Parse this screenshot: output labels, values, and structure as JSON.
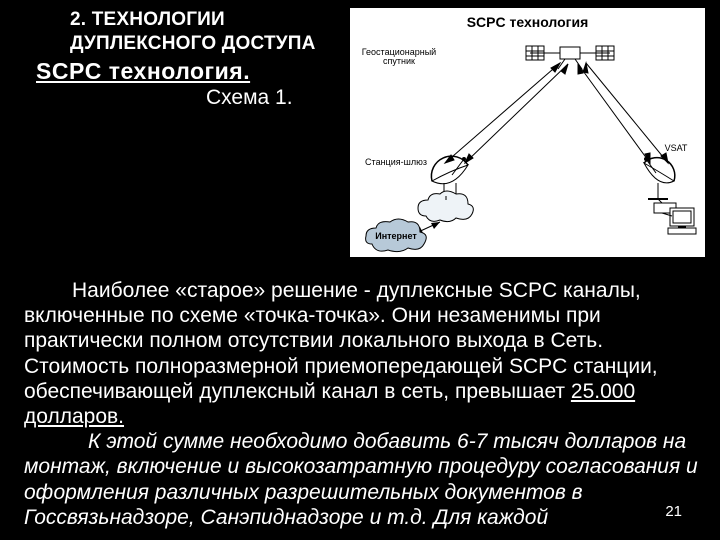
{
  "heading": {
    "line1": "2. ТЕХНОЛОГИИ",
    "line2": "ДУПЛЕКСНОГО ДОСТУПА",
    "sub": "SCPC технология."
  },
  "scheme_label": "Схема 1.",
  "diagram": {
    "title": "SCPC технология",
    "labels": {
      "satellite": "Геостационарный\nспутник",
      "gateway": "Станция-шлюз",
      "vsat": "VSAT",
      "internet": "Интернет"
    },
    "colors": {
      "bg": "#ffffff",
      "line": "#000000",
      "cloud_fill": "#eef3f7",
      "internet_fill": "#b7c9d8"
    }
  },
  "body": {
    "p1": "Наиболее «старое» решение - дуплексные SCPC каналы, включенные по схеме «точка-точка». Они незаменимы при практически полном отсутствии локального выхода в Сеть. Стоимость полноразмерной приемопередающей SCPC станции, обеспечивающей дуплексный канал в сеть, превышает ",
    "p1_price": "25.000 долларов.",
    "p2_a": "К этой сумме необходимо добавить 6-7 тысяч долларов на монтаж, включение и высокозатратную процедуру согласования и оформления различных разрешительных документов в Госсвязьнадзоре, Санэпиднадзоре и т.д. Для каждой"
  },
  "page_number": "21"
}
